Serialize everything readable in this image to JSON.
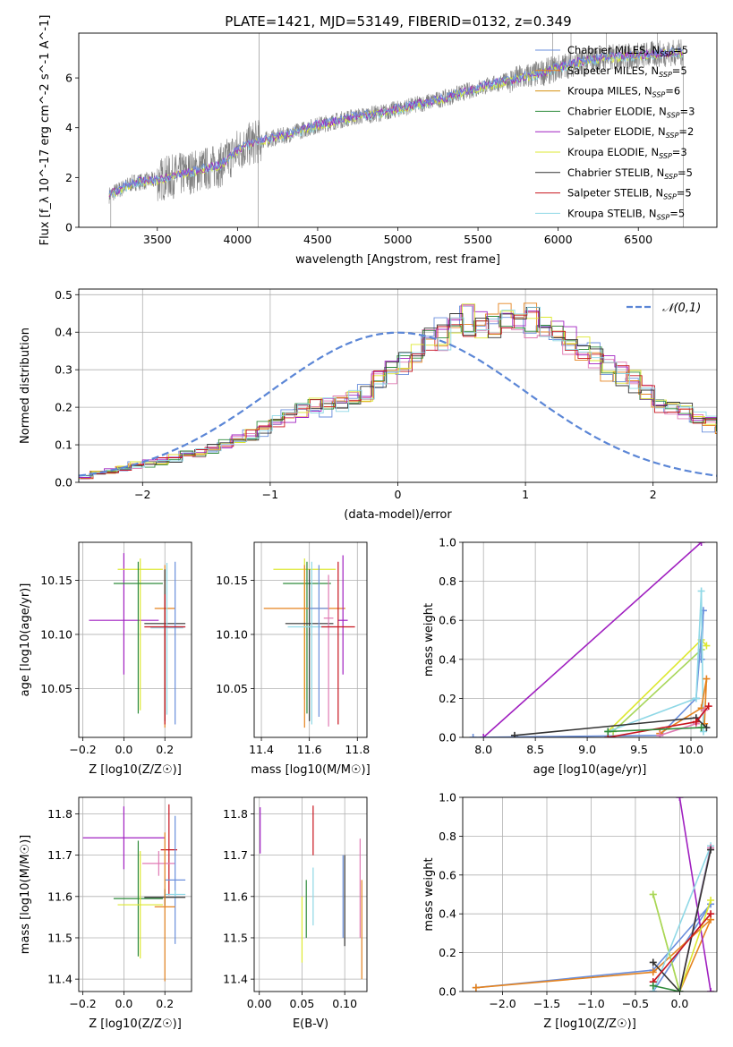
{
  "figure_title": "PLATE=1421, MJD=53149, FIBERID=0132, z=0.349",
  "chart_data": [
    {
      "id": "spectrum",
      "type": "line",
      "title": "PLATE=1421, MJD=53149, FIBERID=0132, z=0.349",
      "xlabel": "wavelength [Angstrom, rest frame]",
      "ylabel": "Flux [f_λ 10^-17 erg cm^-2 s^-1 A^-1]",
      "xlim": [
        3010,
        6990
      ],
      "ylim": [
        0,
        7.8
      ],
      "xticks": [
        3500,
        4000,
        4500,
        5000,
        5500,
        6000,
        6500
      ],
      "yticks": [
        0,
        2,
        4,
        6
      ],
      "legend_position": "top-right",
      "legend": [
        {
          "label": "Chabrier MILES, N_SSP=5",
          "color": "#6a8fdc"
        },
        {
          "label": "Salpeter MILES, N_SSP=5",
          "color": "#e5831f"
        },
        {
          "label": "Kroupa MILES, N_SSP=6",
          "color": "#d4900f"
        },
        {
          "label": "Chabrier ELODIE, N_SSP=3",
          "color": "#2e8b3b"
        },
        {
          "label": "Salpeter ELODIE, N_SSP=2",
          "color": "#a020c0"
        },
        {
          "label": "Kroupa ELODIE, N_SSP=3",
          "color": "#dde830"
        },
        {
          "label": "Chabrier STELIB, N_SSP=5",
          "color": "#333333"
        },
        {
          "label": "Salpeter STELIB, N_SSP=5",
          "color": "#c8141e"
        },
        {
          "label": "Kroupa STELIB, N_SSP=5",
          "color": "#8fd8e6"
        }
      ],
      "data_color": "#808080",
      "model_colors": [
        "#8fd8e6",
        "#dde830",
        "#a020c0",
        "#6a8fdc"
      ],
      "continuum": {
        "x": [
          3200,
          3350,
          3500,
          3700,
          3900,
          4000,
          4100,
          4300,
          4500,
          4700,
          4900,
          5100,
          5300,
          5500,
          5700,
          5900,
          6100,
          6300,
          6500,
          6700,
          6780
        ],
        "y": [
          1.3,
          1.8,
          1.9,
          2.2,
          2.5,
          3.1,
          3.4,
          3.7,
          4.1,
          4.4,
          4.6,
          4.9,
          5.2,
          5.6,
          5.9,
          6.2,
          6.6,
          6.8,
          6.9,
          7.0,
          7.0
        ]
      }
    },
    {
      "id": "residuals",
      "type": "histogram",
      "xlabel": "(data-model)/error",
      "ylabel": "Normed distribution",
      "xlim": [
        -2.5,
        2.5
      ],
      "ylim": [
        0,
        0.515
      ],
      "xticks": [
        -2,
        -1,
        0,
        1,
        2
      ],
      "yticks": [
        0.0,
        0.1,
        0.2,
        0.3,
        0.4,
        0.5
      ],
      "legend_position": "top-right",
      "legend": [
        {
          "label": "𝒩(0,1)",
          "color": "#5b86d6"
        }
      ],
      "bin_edges_start": -2.5,
      "bin_width": 0.1,
      "base_distribution": [
        0.017,
        0.022,
        0.03,
        0.04,
        0.045,
        0.05,
        0.056,
        0.062,
        0.072,
        0.08,
        0.09,
        0.1,
        0.115,
        0.13,
        0.145,
        0.16,
        0.175,
        0.19,
        0.2,
        0.2,
        0.21,
        0.22,
        0.24,
        0.27,
        0.3,
        0.32,
        0.35,
        0.38,
        0.4,
        0.43,
        0.43,
        0.42,
        0.42,
        0.43,
        0.44,
        0.43,
        0.42,
        0.4,
        0.38,
        0.36,
        0.34,
        0.31,
        0.29,
        0.27,
        0.24,
        0.21,
        0.2,
        0.19,
        0.17,
        0.155,
        0.14,
        0.13,
        0.115,
        0.1,
        0.09,
        0.08,
        0.075,
        0.07,
        0.06,
        0.05,
        0.045,
        0.04,
        0.035,
        0.03,
        0.025,
        0.02,
        0.018,
        0.015,
        0.012,
        0.01
      ],
      "series_colors": [
        "#6a8fdc",
        "#e5831f",
        "#e07ab4",
        "#2e8b3b",
        "#a020c0",
        "#dde830",
        "#333333",
        "#c8141e",
        "#8fd8e6"
      ],
      "normal_curve": {
        "mean": 0,
        "sigma": 1
      }
    },
    {
      "id": "age_vs_Z",
      "type": "errorbar",
      "xlabel": "Z [log10(Z/Z☉)]",
      "ylabel": "age [log10(age/yr)]",
      "xlim": [
        -0.22,
        0.33
      ],
      "ylim": [
        10.005,
        10.185
      ],
      "xticks": [
        -0.2,
        0.0,
        0.2
      ],
      "yticks": [
        10.05,
        10.1,
        10.15
      ],
      "points": [
        {
          "x": 0.0,
          "y": 10.113,
          "xerr": 0.17,
          "yerr_lo": 0.05,
          "yerr_hi": 0.062,
          "color": "#a020c0"
        },
        {
          "x": 0.08,
          "y": 10.16,
          "xerr": 0.11,
          "yerr_lo": 0.13,
          "yerr_hi": 0.01,
          "color": "#dde830"
        },
        {
          "x": 0.07,
          "y": 10.147,
          "xerr": 0.12,
          "yerr_lo": 0.12,
          "yerr_hi": 0.02,
          "color": "#2e8b3b"
        },
        {
          "x": 0.2,
          "y": 10.124,
          "xerr": 0.05,
          "yerr_lo": 0.11,
          "yerr_hi": 0.04,
          "color": "#e5831f"
        },
        {
          "x": 0.2,
          "y": 10.11,
          "xerr": 0.1,
          "yerr_lo": 0.09,
          "yerr_hi": 0.05,
          "color": "#333333"
        },
        {
          "x": 0.21,
          "y": 10.106,
          "xerr": 0.08,
          "yerr_lo": 0.08,
          "yerr_hi": 0.06,
          "color": "#8fd8e6"
        },
        {
          "x": 0.25,
          "y": 10.107,
          "xerr": 0.05,
          "yerr_lo": 0.09,
          "yerr_hi": 0.06,
          "color": "#6a8fdc"
        },
        {
          "x": 0.2,
          "y": 10.107,
          "xerr": 0.1,
          "yerr_lo": 0.09,
          "yerr_hi": 0.03,
          "color": "#c8141e"
        }
      ]
    },
    {
      "id": "age_vs_mass",
      "type": "errorbar",
      "xlabel": "mass [log10(M/M☉)]",
      "ylabel": "",
      "xlim": [
        11.37,
        11.84
      ],
      "ylim": [
        10.005,
        10.185
      ],
      "xticks": [
        11.4,
        11.6,
        11.8
      ],
      "yticks": [
        10.05,
        10.1,
        10.15
      ],
      "points": [
        {
          "x": 11.58,
          "y": 10.16,
          "xerr": 0.13,
          "yerr_lo": 0.12,
          "yerr_hi": 0.01,
          "color": "#dde830"
        },
        {
          "x": 11.59,
          "y": 10.147,
          "xerr": 0.1,
          "yerr_lo": 0.12,
          "yerr_hi": 0.02,
          "color": "#2e8b3b"
        },
        {
          "x": 11.58,
          "y": 10.124,
          "xerr": 0.17,
          "yerr_lo": 0.11,
          "yerr_hi": 0.04,
          "color": "#e5831f"
        },
        {
          "x": 11.6,
          "y": 10.11,
          "xerr": 0.1,
          "yerr_lo": 0.09,
          "yerr_hi": 0.05,
          "color": "#333333"
        },
        {
          "x": 11.61,
          "y": 10.107,
          "xerr": 0.1,
          "yerr_lo": 0.09,
          "yerr_hi": 0.06,
          "color": "#8fd8e6"
        },
        {
          "x": 11.64,
          "y": 10.124,
          "xerr": 0.04,
          "yerr_lo": 0.1,
          "yerr_hi": 0.04,
          "color": "#6a8fdc"
        },
        {
          "x": 11.68,
          "y": 10.115,
          "xerr": 0.02,
          "yerr_lo": 0.1,
          "yerr_hi": 0.04,
          "color": "#e07ab4"
        },
        {
          "x": 11.74,
          "y": 10.113,
          "xerr": 0.02,
          "yerr_lo": 0.05,
          "yerr_hi": 0.06,
          "color": "#a020c0"
        },
        {
          "x": 11.72,
          "y": 10.107,
          "xerr": 0.07,
          "yerr_lo": 0.09,
          "yerr_hi": 0.06,
          "color": "#c8141e"
        }
      ]
    },
    {
      "id": "mass_weight_vs_age",
      "type": "line",
      "xlabel": "age [log10(age/yr)]",
      "ylabel": "mass weight",
      "xlim": [
        7.8,
        10.25
      ],
      "ylim": [
        0,
        1.0
      ],
      "xticks": [
        8.0,
        8.5,
        9.0,
        9.5,
        10.0
      ],
      "yticks": [
        0.0,
        0.2,
        0.4,
        0.6,
        0.8,
        1.0
      ],
      "series": [
        {
          "color": "#a020c0",
          "x": [
            8.0,
            10.1
          ],
          "y": [
            0.0,
            1.0
          ]
        },
        {
          "color": "#dde830",
          "x": [
            9.2,
            10.1,
            10.15
          ],
          "y": [
            0.03,
            0.5,
            0.47
          ]
        },
        {
          "color": "#a7d65a",
          "x": [
            9.25,
            10.1
          ],
          "y": [
            0.03,
            0.45
          ]
        },
        {
          "color": "#6a8fdc",
          "x": [
            7.9,
            9.7,
            10.05,
            10.12,
            10.1
          ],
          "y": [
            0.0,
            0.01,
            0.2,
            0.65,
            0.4
          ]
        },
        {
          "color": "#8fd8e6",
          "x": [
            9.2,
            10.05,
            10.1,
            10.12
          ],
          "y": [
            0.03,
            0.2,
            0.75,
            0.03
          ]
        },
        {
          "color": "#e5831f",
          "x": [
            9.7,
            10.1,
            10.15,
            10.13
          ],
          "y": [
            0.02,
            0.15,
            0.3,
            0.07
          ]
        },
        {
          "color": "#e07ab4",
          "x": [
            9.7,
            10.05,
            10.13
          ],
          "y": [
            0.01,
            0.07,
            0.14
          ]
        },
        {
          "color": "#333333",
          "x": [
            8.3,
            10.05,
            10.15
          ],
          "y": [
            0.01,
            0.1,
            0.05
          ]
        },
        {
          "color": "#c8141e",
          "x": [
            9.2,
            10.05,
            10.17
          ],
          "y": [
            0.0,
            0.08,
            0.16
          ]
        },
        {
          "color": "#2e8b3b",
          "x": [
            9.2,
            10.1
          ],
          "y": [
            0.03,
            0.05
          ]
        }
      ]
    },
    {
      "id": "mass_vs_Z",
      "type": "errorbar",
      "xlabel": "Z [log10(Z/Z☉)]",
      "ylabel": "mass [log10(M/M☉)]",
      "xlim": [
        -0.22,
        0.33
      ],
      "ylim": [
        11.37,
        11.84
      ],
      "xticks": [
        -0.2,
        0.0,
        0.2
      ],
      "yticks": [
        11.4,
        11.5,
        11.6,
        11.7,
        11.8
      ],
      "points": [
        {
          "x": 0.0,
          "y": 11.742,
          "xerr": 0.2,
          "yerr": 0.076,
          "color": "#a020c0"
        },
        {
          "x": 0.22,
          "y": 11.713,
          "xerr": 0.04,
          "yerr": 0.11,
          "color": "#c8141e"
        },
        {
          "x": 0.17,
          "y": 11.68,
          "xerr": 0.08,
          "yerr": 0.03,
          "color": "#e07ab4"
        },
        {
          "x": 0.25,
          "y": 11.64,
          "xerr": 0.05,
          "yerr": 0.155,
          "color": "#6a8fdc"
        },
        {
          "x": 0.25,
          "y": 11.605,
          "xerr": 0.05,
          "yerr": 0.01,
          "color": "#8fd8e6"
        },
        {
          "x": 0.2,
          "y": 11.598,
          "xerr": 0.1,
          "yerr": 0.02,
          "color": "#333333"
        },
        {
          "x": 0.07,
          "y": 11.595,
          "xerr": 0.12,
          "yerr": 0.14,
          "color": "#2e8b3b"
        },
        {
          "x": 0.08,
          "y": 11.58,
          "xerr": 0.11,
          "yerr": 0.13,
          "color": "#dde830"
        },
        {
          "x": 0.2,
          "y": 11.575,
          "xerr": 0.05,
          "yerr": 0.18,
          "color": "#e5831f"
        }
      ]
    },
    {
      "id": "mass_vs_EBV",
      "type": "errorbar",
      "xlabel": "E(B-V)",
      "ylabel": "",
      "xlim": [
        -0.006,
        0.126
      ],
      "ylim": [
        11.37,
        11.84
      ],
      "xticks": [
        0.0,
        0.05,
        0.1
      ],
      "yticks": [
        11.4,
        11.5,
        11.6,
        11.7,
        11.8
      ],
      "points": [
        {
          "x": 0.001,
          "y": 11.76,
          "yerr": 0.056,
          "color": "#a020c0"
        },
        {
          "x": 0.063,
          "y": 11.76,
          "yerr": 0.06,
          "color": "#c8141e"
        },
        {
          "x": 0.05,
          "y": 11.52,
          "yerr": 0.08,
          "color": "#dde830"
        },
        {
          "x": 0.055,
          "y": 11.57,
          "yerr": 0.07,
          "color": "#2e8b3b"
        },
        {
          "x": 0.063,
          "y": 11.6,
          "yerr": 0.07,
          "color": "#8fd8e6"
        },
        {
          "x": 0.098,
          "y": 11.6,
          "yerr": 0.1,
          "color": "#6a8fdc"
        },
        {
          "x": 0.1,
          "y": 11.59,
          "yerr": 0.11,
          "color": "#333333"
        },
        {
          "x": 0.118,
          "y": 11.62,
          "yerr": 0.12,
          "color": "#e07ab4"
        },
        {
          "x": 0.12,
          "y": 11.52,
          "yerr": 0.12,
          "color": "#e5831f"
        }
      ]
    },
    {
      "id": "mass_weight_vs_Z",
      "type": "line",
      "xlabel": "Z [log10(Z/Z☉)]",
      "ylabel": "mass weight",
      "xlim": [
        -2.45,
        0.42
      ],
      "ylim": [
        0,
        1.0
      ],
      "xticks": [
        -2.0,
        -1.5,
        -1.0,
        -0.5,
        0.0
      ],
      "yticks": [
        0.0,
        0.2,
        0.4,
        0.6,
        0.8,
        1.0
      ],
      "series": [
        {
          "color": "#6a8fdc",
          "x": [
            -2.3,
            -0.3,
            0.35,
            -0.3
          ],
          "y": [
            0.02,
            0.11,
            0.45,
            0.0
          ]
        },
        {
          "color": "#e5831f",
          "x": [
            -2.3,
            -0.3,
            0.35,
            0.0
          ],
          "y": [
            0.02,
            0.1,
            0.37,
            0.0
          ]
        },
        {
          "color": "#a020c0",
          "x": [
            0.0,
            0.35
          ],
          "y": [
            1.0,
            0.0
          ]
        },
        {
          "color": "#dde830",
          "x": [
            -0.3,
            0.0,
            0.35
          ],
          "y": [
            0.5,
            0.0,
            0.47
          ]
        },
        {
          "color": "#a7d65a",
          "x": [
            -0.3,
            0.0
          ],
          "y": [
            0.5,
            0.0
          ]
        },
        {
          "color": "#8fd8e6",
          "x": [
            -0.3,
            0.35,
            0.0
          ],
          "y": [
            0.0,
            0.75,
            0.0
          ]
        },
        {
          "color": "#e07ab4",
          "x": [
            0.0,
            0.35
          ],
          "y": [
            0.0,
            0.74
          ]
        },
        {
          "color": "#333333",
          "x": [
            -0.3,
            0.0,
            0.35
          ],
          "y": [
            0.15,
            0.0,
            0.73
          ]
        },
        {
          "color": "#c8141e",
          "x": [
            -0.3,
            0.35
          ],
          "y": [
            0.05,
            0.4
          ]
        },
        {
          "color": "#2e8b3b",
          "x": [
            -0.3,
            0.0
          ],
          "y": [
            0.03,
            0.0
          ]
        }
      ]
    }
  ]
}
